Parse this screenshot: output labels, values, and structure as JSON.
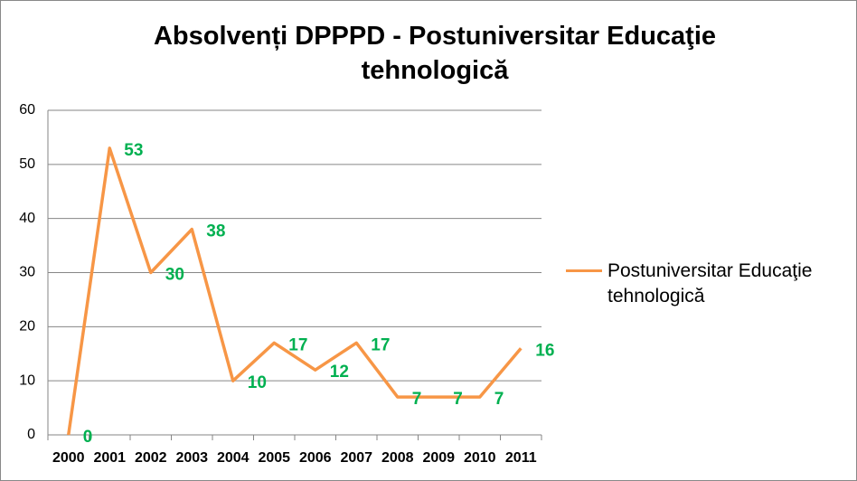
{
  "chart_data": {
    "type": "line",
    "title": "Absolvenți DPPPD - Postuniversitar  Educaţie tehnologică",
    "categories": [
      "2000",
      "2001",
      "2002",
      "2003",
      "2004",
      "2005",
      "2006",
      "2007",
      "2008",
      "2009",
      "2010",
      "2011"
    ],
    "series": [
      {
        "name": "Postuniversitar Educaţie tehnologică",
        "color": "#f79646",
        "values": [
          0,
          53,
          30,
          38,
          10,
          17,
          12,
          17,
          7,
          7,
          7,
          16
        ]
      }
    ],
    "data_label_color": "#00b050",
    "ylim": [
      0,
      60
    ],
    "yticks": [
      0,
      10,
      20,
      30,
      40,
      50,
      60
    ],
    "grid": true,
    "legend": "right"
  }
}
